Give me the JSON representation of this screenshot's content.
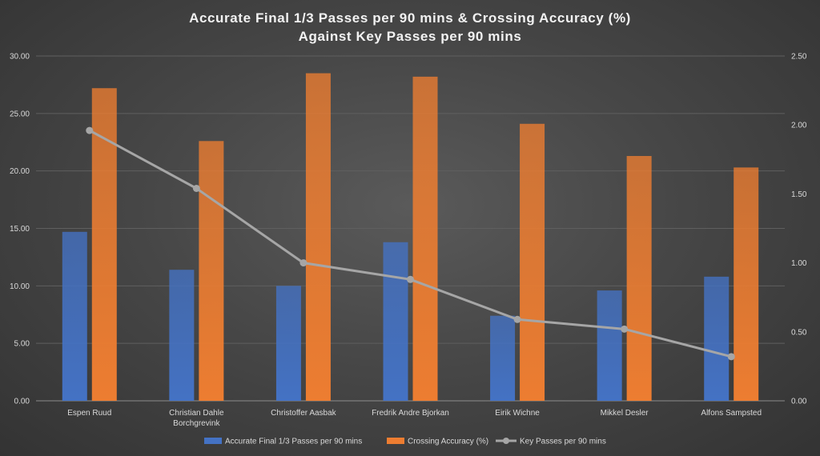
{
  "chart_data": {
    "type": "bar",
    "title_lines": [
      "Accurate Final 1/3 Passes per 90 mins & Crossing Accuracy (%)",
      "Against Key Passes per 90 mins"
    ],
    "categories": [
      [
        "Espen Ruud"
      ],
      [
        "Christian Dahle",
        "Borchgrevink"
      ],
      [
        "Christoffer Aasbak"
      ],
      [
        "Fredrik Andre Bjorkan"
      ],
      [
        "Eirik Wichne"
      ],
      [
        "Mikkel Desler"
      ],
      [
        "Alfons Sampsted"
      ]
    ],
    "series": [
      {
        "name": "Accurate Final 1/3 Passes per 90 mins",
        "type": "bar",
        "axis": "left",
        "color": "#4472c4",
        "values": [
          14.7,
          11.4,
          10.0,
          13.8,
          7.4,
          9.6,
          10.8
        ]
      },
      {
        "name": "Crossing Accuracy (%)",
        "type": "bar",
        "axis": "left",
        "color": "#ed7d31",
        "values": [
          27.2,
          22.6,
          28.5,
          28.2,
          24.1,
          21.3,
          20.3
        ]
      },
      {
        "name": "Key Passes per 90 mins",
        "type": "line",
        "axis": "right",
        "color": "#a6a6a6",
        "values": [
          1.96,
          1.54,
          1.0,
          0.88,
          0.59,
          0.52,
          0.32
        ]
      }
    ],
    "y_left": {
      "min": 0,
      "max": 30,
      "step": 5,
      "decimals": 2
    },
    "y_right": {
      "min": 0,
      "max": 2.5,
      "step": 0.5,
      "decimals": 2
    },
    "legend_position": "bottom",
    "grid": true
  }
}
